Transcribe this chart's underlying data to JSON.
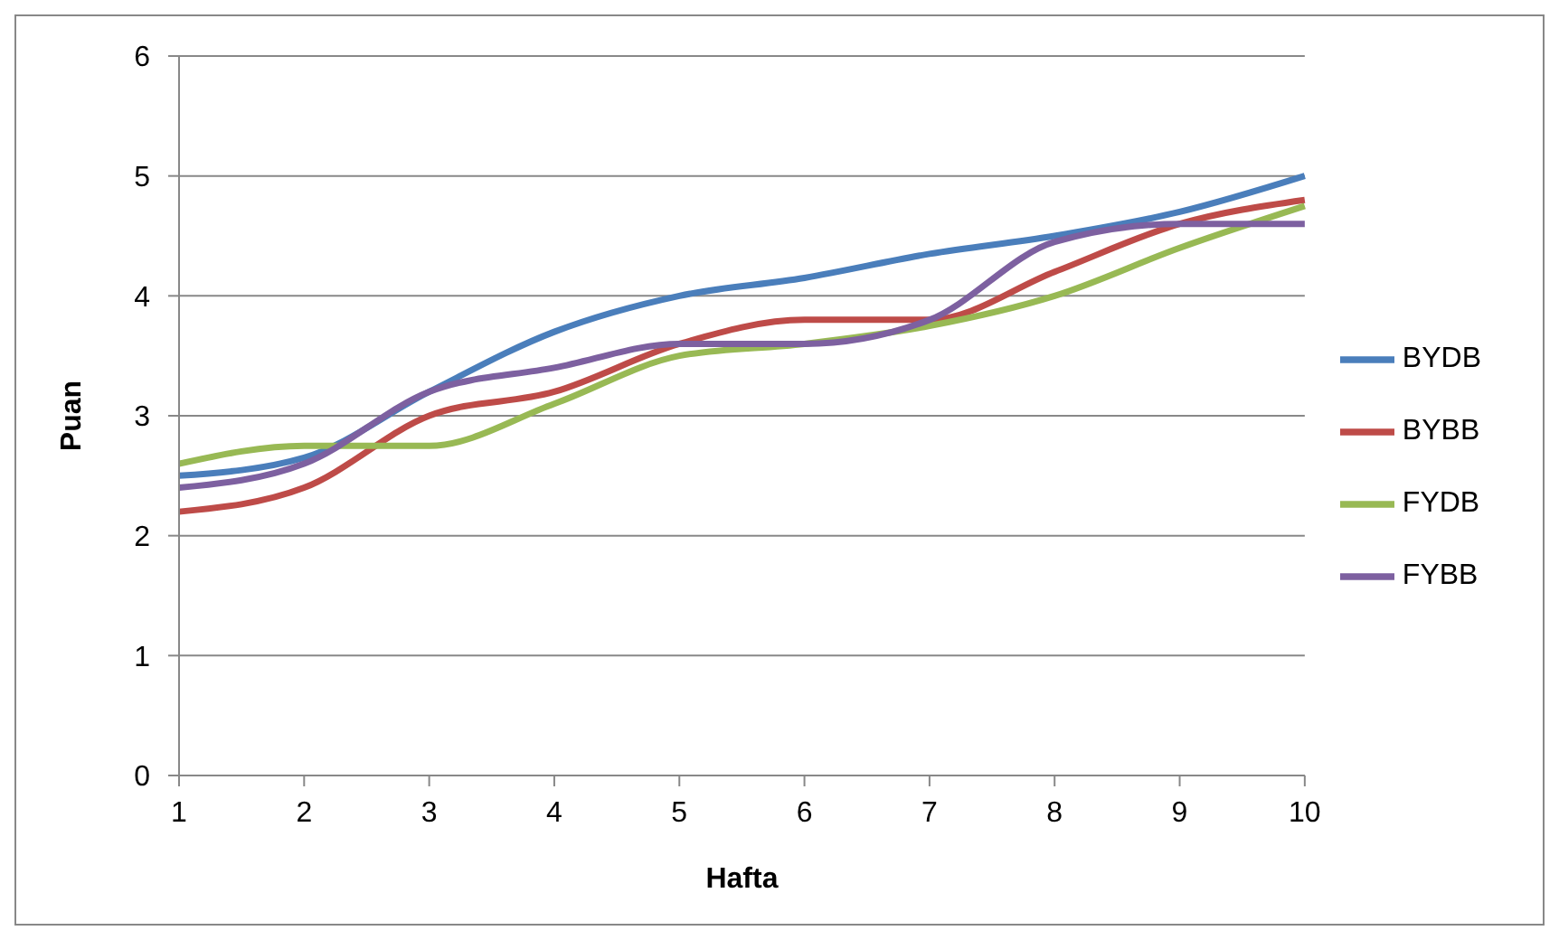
{
  "chart_data": {
    "type": "line",
    "xlabel": "Hafta",
    "ylabel": "Puan",
    "categories": [
      "1",
      "2",
      "3",
      "4",
      "5",
      "6",
      "7",
      "8",
      "9",
      "10"
    ],
    "series": [
      {
        "name": "BYDB",
        "color": "#4a7ebb",
        "values": [
          2.5,
          2.65,
          3.2,
          3.7,
          4.0,
          4.15,
          4.35,
          4.5,
          4.7,
          5.0
        ]
      },
      {
        "name": "BYBB",
        "color": "#be4b48",
        "values": [
          2.2,
          2.4,
          3.0,
          3.2,
          3.6,
          3.8,
          3.8,
          4.2,
          4.6,
          4.8
        ]
      },
      {
        "name": "FYDB",
        "color": "#98b954",
        "values": [
          2.6,
          2.75,
          2.75,
          3.1,
          3.5,
          3.6,
          3.75,
          4.0,
          4.4,
          4.75
        ]
      },
      {
        "name": "FYBB",
        "color": "#7d60a0",
        "values": [
          2.4,
          2.6,
          3.2,
          3.4,
          3.6,
          3.6,
          3.8,
          4.45,
          4.6,
          4.6
        ]
      }
    ],
    "ylim": [
      0,
      6
    ],
    "yticks": [
      0,
      1,
      2,
      3,
      4,
      5,
      6
    ],
    "grid": "y",
    "legend": "right",
    "marker": "none",
    "line_style": "solid"
  }
}
